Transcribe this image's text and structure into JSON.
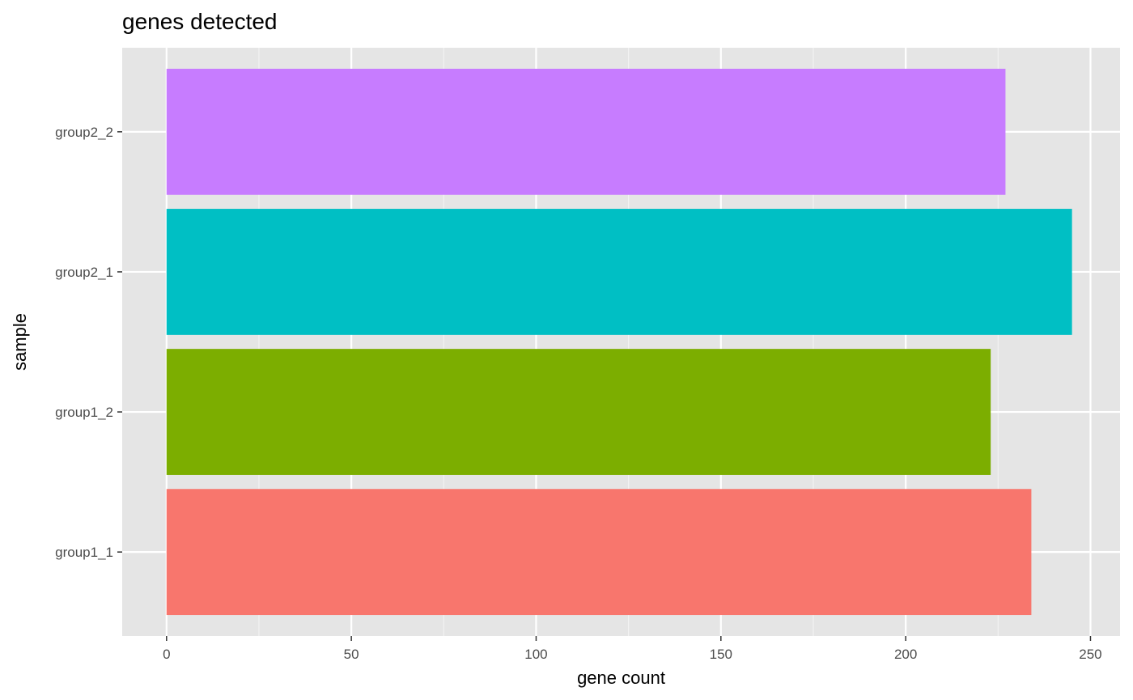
{
  "chart_data": {
    "type": "bar",
    "orientation": "horizontal",
    "title": "genes detected",
    "xlabel": "gene count",
    "ylabel": "sample",
    "categories": [
      "group1_1",
      "group1_2",
      "group2_1",
      "group2_2"
    ],
    "values": [
      234,
      223,
      245,
      227
    ],
    "colors": [
      "#F8766D",
      "#7CAE00",
      "#00BFC4",
      "#C77CFF"
    ],
    "xlim": [
      -12,
      258
    ],
    "xticks": [
      0,
      50,
      100,
      150,
      200,
      250
    ],
    "xtick_labels": [
      "0",
      "50",
      "100",
      "150",
      "200",
      "250"
    ],
    "grid": true,
    "legend": "none",
    "panel_background": "#E5E5E5"
  }
}
